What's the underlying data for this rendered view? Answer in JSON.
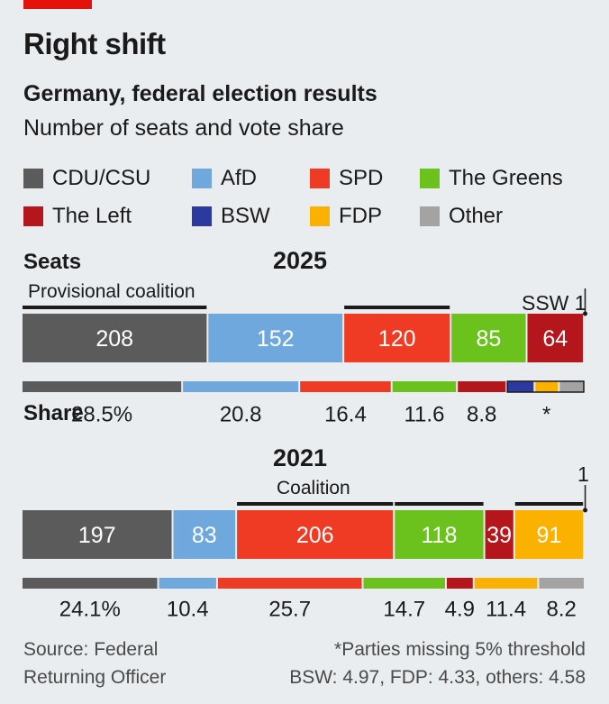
{
  "header": {
    "title": "Right shift",
    "subtitle": "Germany, federal election results",
    "description": "Number of seats and vote share"
  },
  "legend": [
    {
      "label": "CDU/CSU",
      "color": "#5b5b5b"
    },
    {
      "label": "AfD",
      "color": "#6fa8dc"
    },
    {
      "label": "SPD",
      "color": "#ef3b24"
    },
    {
      "label": "The Greens",
      "color": "#6cc21c"
    },
    {
      "label": "The Left",
      "color": "#b5161b"
    },
    {
      "label": "BSW",
      "color": "#2c3aa0"
    },
    {
      "label": "FDP",
      "color": "#fbb100"
    },
    {
      "label": "Other",
      "color": "#a3a3a3"
    }
  ],
  "labels": {
    "seats": "Seats",
    "share": "Share"
  },
  "chart_data": [
    {
      "type": "bar",
      "year": "2025",
      "stacked": true,
      "seats": [
        {
          "party": "CDU/CSU",
          "value": 208,
          "label": "208"
        },
        {
          "party": "AfD",
          "value": 152,
          "label": "152"
        },
        {
          "party": "SPD",
          "value": 120,
          "label": "120"
        },
        {
          "party": "The Greens",
          "value": 85,
          "label": "85"
        },
        {
          "party": "The Left",
          "value": 64,
          "label": "64"
        },
        {
          "party": "SSW",
          "value": 1,
          "label": ""
        }
      ],
      "seat_annotation": "SSW 1",
      "coalition_label": "Provisional coalition",
      "coalition_parties": [
        "CDU/CSU",
        "SPD"
      ],
      "share": [
        {
          "party": "CDU/CSU",
          "value": 28.5,
          "label": "28.5%"
        },
        {
          "party": "AfD",
          "value": 20.8,
          "label": "20.8"
        },
        {
          "party": "SPD",
          "value": 16.4,
          "label": "16.4"
        },
        {
          "party": "The Greens",
          "value": 11.6,
          "label": "11.6"
        },
        {
          "party": "The Left",
          "value": 8.8,
          "label": "8.8"
        },
        {
          "party": "BSW",
          "value": 4.97,
          "label": "*"
        },
        {
          "party": "FDP",
          "value": 4.33,
          "label": ""
        },
        {
          "party": "Other",
          "value": 4.58,
          "label": ""
        }
      ]
    },
    {
      "type": "bar",
      "year": "2021",
      "stacked": true,
      "seats": [
        {
          "party": "CDU/CSU",
          "value": 197,
          "label": "197"
        },
        {
          "party": "AfD",
          "value": 83,
          "label": "83"
        },
        {
          "party": "SPD",
          "value": 206,
          "label": "206"
        },
        {
          "party": "The Greens",
          "value": 118,
          "label": "118"
        },
        {
          "party": "The Left",
          "value": 39,
          "label": "39"
        },
        {
          "party": "FDP",
          "value": 91,
          "label": "91"
        },
        {
          "party": "SSW",
          "value": 1,
          "label": ""
        }
      ],
      "seat_annotation": "1",
      "coalition_label": "Coalition",
      "coalition_parties": [
        "SPD",
        "The Greens",
        "FDP"
      ],
      "share": [
        {
          "party": "CDU/CSU",
          "value": 24.1,
          "label": "24.1%"
        },
        {
          "party": "AfD",
          "value": 10.4,
          "label": "10.4"
        },
        {
          "party": "SPD",
          "value": 25.7,
          "label": "25.7"
        },
        {
          "party": "The Greens",
          "value": 14.7,
          "label": "14.7"
        },
        {
          "party": "The Left",
          "value": 4.9,
          "label": "4.9"
        },
        {
          "party": "FDP",
          "value": 11.4,
          "label": "11.4"
        },
        {
          "party": "Other",
          "value": 8.2,
          "label": "8.2"
        }
      ]
    }
  ],
  "footer": {
    "source_line1": "Source: Federal",
    "source_line2": "Returning Officer",
    "note_line1": "*Parties missing 5% threshold",
    "note_line2": "BSW: 4.97, FDP: 4.33, others: 4.58"
  }
}
